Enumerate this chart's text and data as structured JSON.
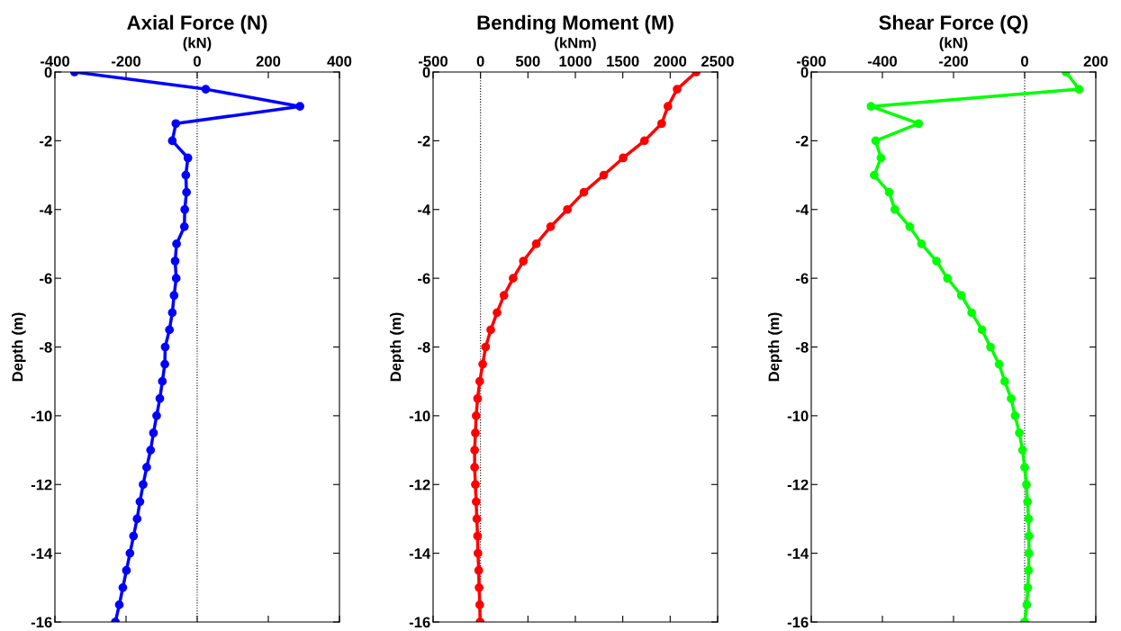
{
  "chart_data": [
    {
      "type": "line",
      "title": "Axial Force (N)",
      "xlabel": "(kN)",
      "ylabel": "Depth (m)",
      "xlim": [
        -400,
        400
      ],
      "xticks": [
        -400,
        -200,
        0,
        200,
        400
      ],
      "ylim": [
        -16,
        0
      ],
      "yticks": [
        -16,
        -14,
        -12,
        -10,
        -8,
        -6,
        -4,
        -2,
        0
      ],
      "marker": "circle",
      "line_style": "solid",
      "grid": false,
      "legend": false,
      "ref_lines": [
        {
          "axis": "x",
          "value": 0,
          "color": "#000000",
          "line_style": "dotted"
        }
      ],
      "series": [
        {
          "color": "#0000ff",
          "x": [
            -345,
            24,
            289,
            -60,
            -70,
            -26,
            -32,
            -30,
            -35,
            -36,
            -58,
            -62,
            -59,
            -65,
            -70,
            -78,
            -90,
            -91,
            -98,
            -105,
            -114,
            -123,
            -131,
            -142,
            -152,
            -161,
            -169,
            -179,
            -189,
            -199,
            -209,
            -219,
            -230
          ],
          "values": [
            0,
            -0.5,
            -1,
            -1.5,
            -2,
            -2.5,
            -3,
            -3.5,
            -4,
            -4.5,
            -5,
            -5.5,
            -6,
            -6.5,
            -7,
            -7.5,
            -8,
            -8.5,
            -9,
            -9.5,
            -10,
            -10.5,
            -11,
            -11.5,
            -12,
            -12.5,
            -13,
            -13.5,
            -14,
            -14.5,
            -15,
            -15.5,
            -16
          ]
        }
      ]
    },
    {
      "type": "line",
      "title": "Bending Moment (M)",
      "xlabel": "(kNm)",
      "ylabel": "Depth (m)",
      "xlim": [
        -500,
        2500
      ],
      "xticks": [
        -500,
        0,
        500,
        1000,
        1500,
        2000,
        2500
      ],
      "ylim": [
        -16,
        0
      ],
      "yticks": [
        -16,
        -14,
        -12,
        -10,
        -8,
        -6,
        -4,
        -2,
        0
      ],
      "marker": "circle",
      "line_style": "solid",
      "grid": false,
      "legend": false,
      "ref_lines": [
        {
          "axis": "x",
          "value": 0,
          "color": "#000000",
          "line_style": "dotted"
        }
      ],
      "series": [
        {
          "color": "#ff0000",
          "x": [
            2274,
            2073,
            1976,
            1910,
            1729,
            1504,
            1299,
            1090,
            916,
            739,
            588,
            452,
            344,
            247,
            174,
            108,
            54,
            23,
            -8,
            -31,
            -46,
            -54,
            -62,
            -62,
            -54,
            -46,
            -39,
            -31,
            -27,
            -19,
            -15,
            -8,
            -4
          ],
          "values": [
            0,
            -0.5,
            -1,
            -1.5,
            -2,
            -2.5,
            -3,
            -3.5,
            -4,
            -4.5,
            -5,
            -5.5,
            -6,
            -6.5,
            -7,
            -7.5,
            -8,
            -8.5,
            -9,
            -9.5,
            -10,
            -10.5,
            -11,
            -11.5,
            -12,
            -12.5,
            -13,
            -13.5,
            -14,
            -14.5,
            -15,
            -15.5,
            -16
          ]
        }
      ]
    },
    {
      "type": "line",
      "title": "Shear Force (Q)",
      "xlabel": "(kN)",
      "ylabel": "Depth (m)",
      "xlim": [
        -600,
        200
      ],
      "xticks": [
        -600,
        -400,
        -200,
        0,
        200
      ],
      "ylim": [
        -16,
        0
      ],
      "yticks": [
        -16,
        -14,
        -12,
        -10,
        -8,
        -6,
        -4,
        -2,
        0
      ],
      "marker": "circle",
      "line_style": "solid",
      "grid": false,
      "legend": false,
      "ref_lines": [
        {
          "axis": "x",
          "value": 0,
          "color": "#000000",
          "line_style": "dotted"
        }
      ],
      "series": [
        {
          "color": "#00ff00",
          "x": [
            116,
            153,
            -432,
            -298,
            -419,
            -404,
            -423,
            -381,
            -365,
            -323,
            -290,
            -248,
            -217,
            -178,
            -149,
            -120,
            -96,
            -72,
            -56,
            -38,
            -27,
            -15,
            -6,
            0,
            5,
            8,
            11,
            12,
            12,
            11,
            9,
            6,
            0
          ],
          "values": [
            0,
            -0.5,
            -1,
            -1.5,
            -2,
            -2.5,
            -3,
            -3.5,
            -4,
            -4.5,
            -5,
            -5.5,
            -6,
            -6.5,
            -7,
            -7.5,
            -8,
            -8.5,
            -9,
            -9.5,
            -10,
            -10.5,
            -11,
            -11.5,
            -12,
            -12.5,
            -13,
            -13.5,
            -14,
            -14.5,
            -15,
            -15.5,
            -16
          ]
        }
      ]
    }
  ]
}
